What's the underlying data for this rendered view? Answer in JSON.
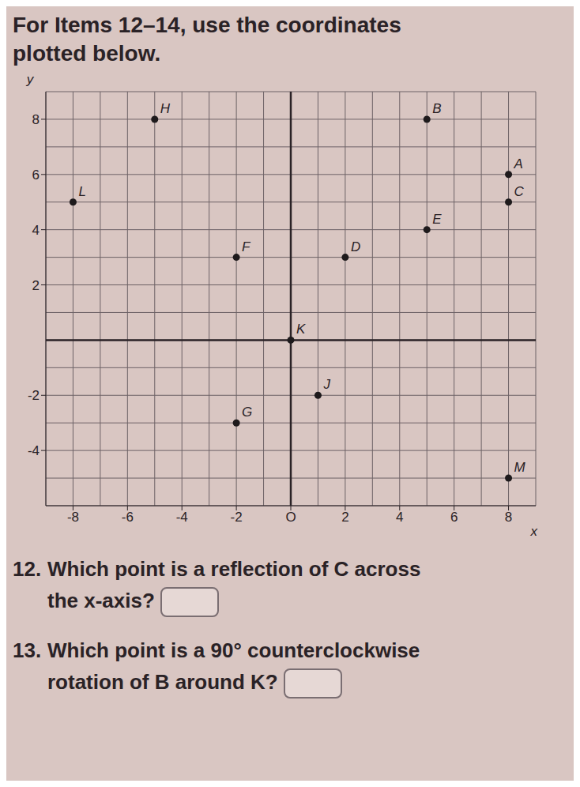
{
  "heading": "For Items 12–14, use the coordinates plotted below.",
  "chart_data": {
    "type": "scatter",
    "xlabel": "x",
    "ylabel": "y",
    "point_labels": [
      "H",
      "B",
      "L",
      "A",
      "E",
      "C",
      "F",
      "D",
      "K",
      "J",
      "G",
      "M"
    ],
    "x": [
      -5,
      5,
      -8,
      8,
      5,
      8,
      -2,
      2,
      0,
      1,
      -2,
      8
    ],
    "values": [
      8,
      8,
      5,
      6,
      4,
      5,
      3,
      3,
      0,
      -2,
      -3,
      -5
    ],
    "xlim": [
      -9,
      9
    ],
    "ylim": [
      -6,
      9
    ],
    "xticks": [
      -8,
      -6,
      -4,
      -2,
      {
        "value": 0,
        "label": "O"
      },
      2,
      4,
      6,
      8
    ],
    "yticks": [
      -4,
      -2,
      2,
      4,
      6,
      8
    ],
    "grid": true,
    "marker": "circle",
    "color": "#1e1a1c"
  },
  "questions": [
    {
      "number": "12.",
      "text": "Which point is a reflection of C across the x-axis?"
    },
    {
      "number": "13.",
      "text": "Which point is a 90° counterclockwise rotation of B around K?"
    }
  ]
}
